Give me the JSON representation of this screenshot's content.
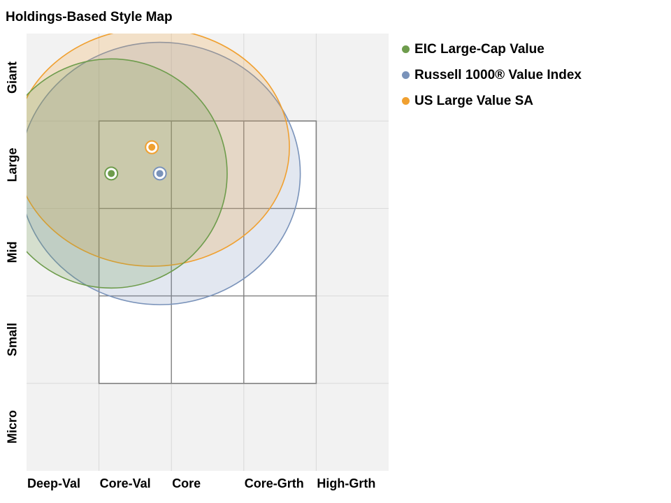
{
  "title": "Holdings-Based Style Map",
  "chart_data": {
    "type": "scatter",
    "title": "Holdings-Based Style Map",
    "x_categories": [
      "Deep-Val",
      "Core-Val",
      "Core",
      "Core-Grth",
      "High-Grth"
    ],
    "y_categories": [
      "Giant",
      "Large",
      "Mid",
      "Small",
      "Micro"
    ],
    "xlim": [
      0,
      5
    ],
    "ylim": [
      0,
      5
    ],
    "grid": true,
    "legend_position": "right",
    "box": {
      "x": [
        1,
        4
      ],
      "y": [
        1,
        4
      ]
    },
    "series": [
      {
        "name": "EIC Large-Cap Value",
        "color": "#6e9c4c",
        "x": 1.17,
        "y": 3.4,
        "rx": 1.6,
        "ry": 1.31
      },
      {
        "name": "Russell 1000® Value Index",
        "color": "#7a93ba",
        "x": 1.84,
        "y": 3.4,
        "rx": 1.94,
        "ry": 1.5
      },
      {
        "name": "US Large Value SA",
        "color": "#f0a030",
        "x": 1.73,
        "y": 3.7,
        "rx": 1.9,
        "ry": 1.36
      }
    ]
  }
}
